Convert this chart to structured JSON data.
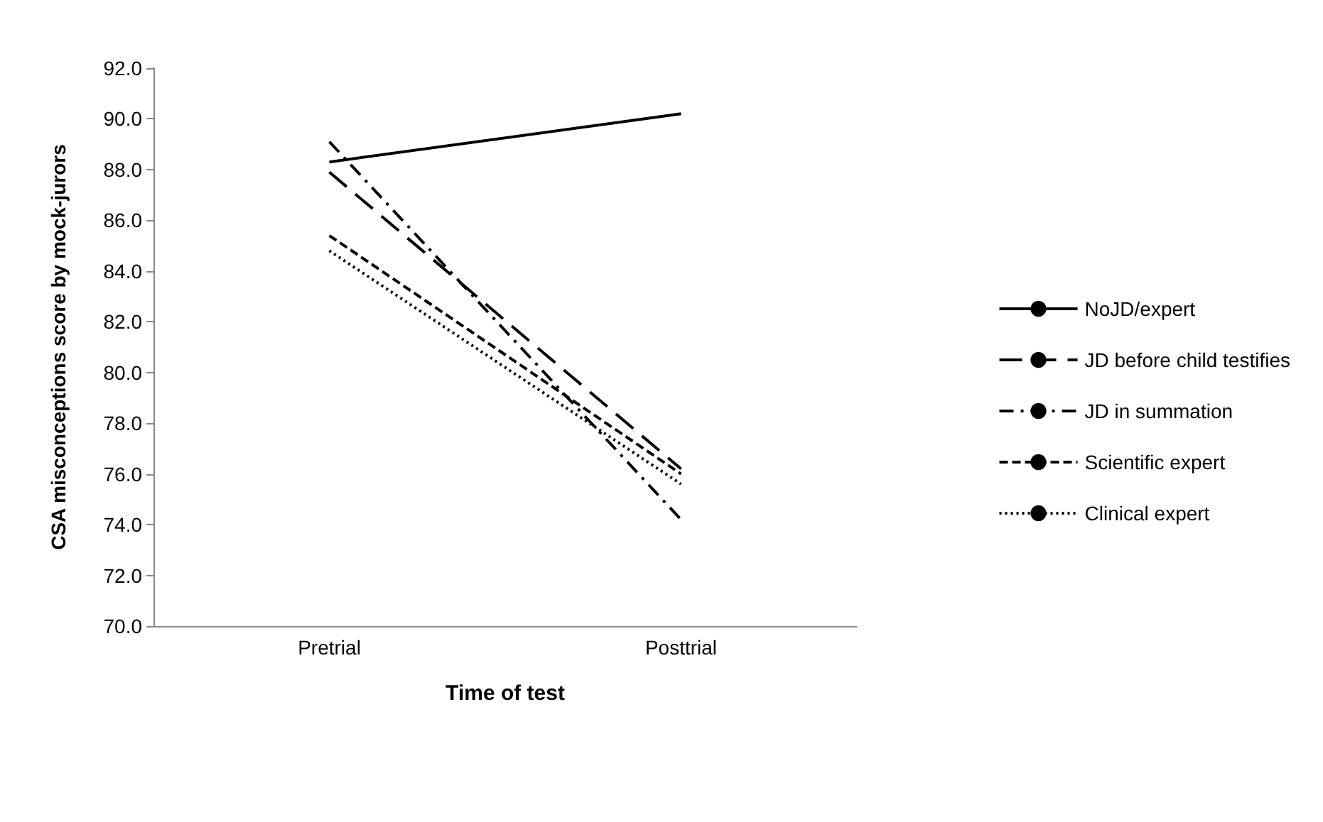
{
  "chart_data": {
    "type": "line",
    "xlabel": "Time of test",
    "ylabel": "CSA misconceptions score by mock-jurors",
    "categories": [
      "Pretrial",
      "Posttrial"
    ],
    "series": [
      {
        "name": "NoJD/expert",
        "color": "#000000",
        "line_style": "solid",
        "values": [
          88.3,
          90.2
        ]
      },
      {
        "name": "JD before child testifies",
        "color": "#000000",
        "line_style": "longdash",
        "values": [
          87.9,
          76.2
        ]
      },
      {
        "name": "JD in summation",
        "color": "#000000",
        "line_style": "dashdot",
        "values": [
          89.1,
          74.2
        ]
      },
      {
        "name": "Scientific expert",
        "color": "#000000",
        "line_style": "dashed",
        "values": [
          85.4,
          76.0
        ]
      },
      {
        "name": "Clinical expert",
        "color": "#000000",
        "line_style": "dotted",
        "values": [
          84.8,
          75.6
        ]
      }
    ],
    "ylim": [
      70,
      92
    ],
    "yticks": [
      {
        "value": 70,
        "label": "70.0"
      },
      {
        "value": 72,
        "label": "72.0"
      },
      {
        "value": 74,
        "label": "74.0"
      },
      {
        "value": 76,
        "label": "76.0"
      },
      {
        "value": 78,
        "label": "78.0"
      },
      {
        "value": 80,
        "label": "80.0"
      },
      {
        "value": 82,
        "label": "82.0"
      },
      {
        "value": 84,
        "label": "84.0"
      },
      {
        "value": 86,
        "label": "86.0"
      },
      {
        "value": 88,
        "label": "88.0"
      },
      {
        "value": 90,
        "label": "90.0"
      },
      {
        "value": 92,
        "label": "92.0"
      }
    ],
    "grid": false,
    "legend": "right",
    "marker": "none"
  }
}
